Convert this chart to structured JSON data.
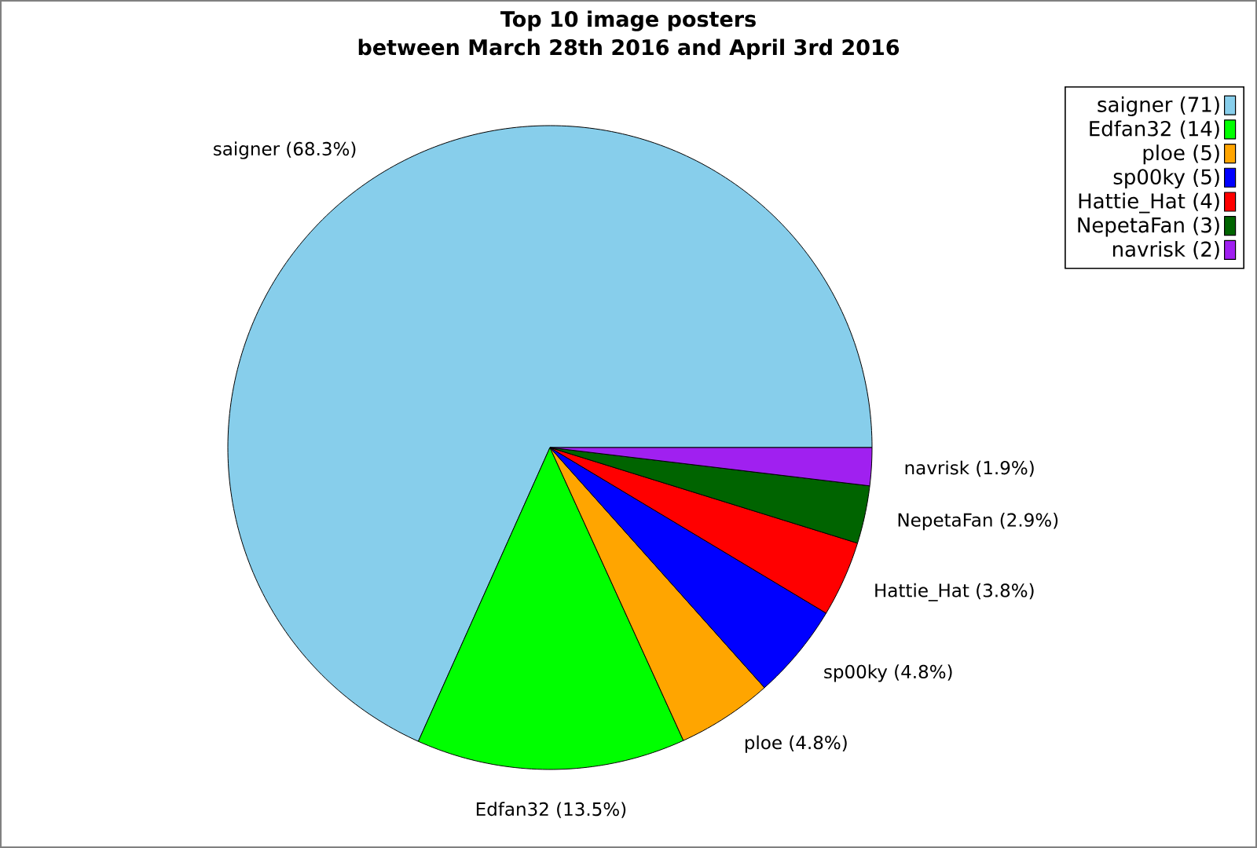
{
  "chart_data": {
    "type": "pie",
    "title": "Top 10 image posters",
    "subtitle": "between March 28th 2016 and April 3rd 2016",
    "categories": [
      "saigner (71)",
      "Edfan32 (14)",
      "ploe (5)",
      "sp00ky (5)",
      "Hattie_Hat (4)",
      "NepetaFan (3)",
      "navrisk (2)"
    ],
    "values": [
      68.3,
      13.5,
      4.8,
      4.8,
      3.8,
      2.9,
      1.9
    ],
    "value_labels": [
      "saigner (68.3%)",
      "Edfan32 (13.5%)",
      "ploe (4.8%)",
      "sp00ky (4.8%)",
      "Hattie_Hat (3.8%)",
      "NepetaFan (2.9%)",
      "navrisk (1.9%)"
    ],
    "colors": [
      "#87ceeb",
      "#00ff00",
      "#ffa500",
      "#0000ff",
      "#ff0000",
      "#006400",
      "#a020f0"
    ],
    "legend": "top right"
  }
}
